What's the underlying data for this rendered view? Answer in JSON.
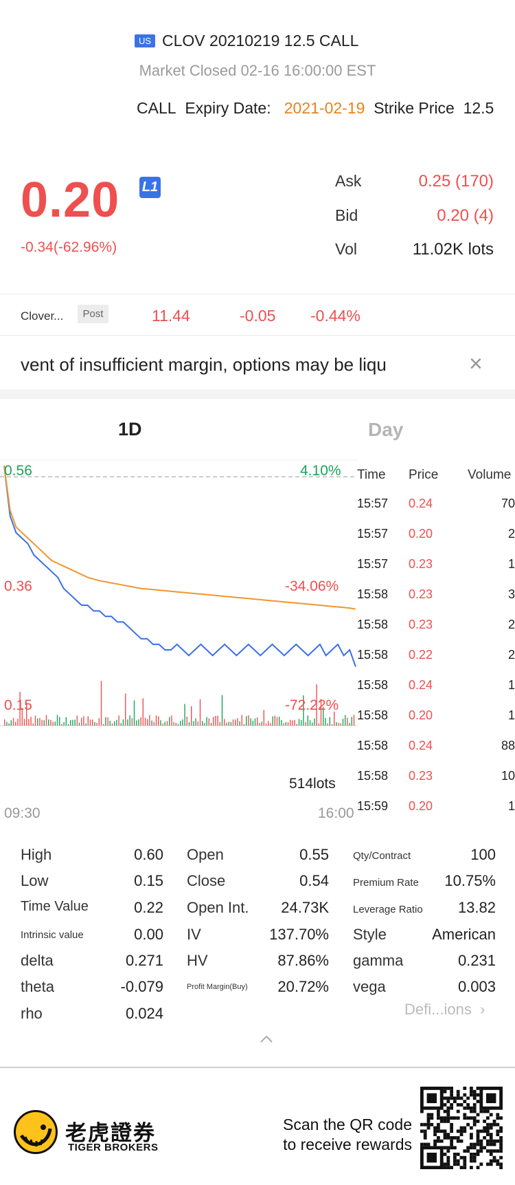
{
  "header": {
    "market_badge": "US",
    "title": "CLOV 20210219 12.5 CALL",
    "status": "Market Closed  02-16 16:00:00 EST",
    "call_label": "CALL",
    "expiry_label": "Expiry Date:",
    "expiry_date": "2021-02-19",
    "strike_label": "Strike Price",
    "strike_price": "12.5"
  },
  "quote": {
    "last_price": "0.20",
    "level_badge": "L1",
    "change": "-0.34(-62.96%)",
    "ask_label": "Ask",
    "ask_value": "0.25 (170)",
    "bid_label": "Bid",
    "bid_value": "0.20 (4)",
    "vol_label": "Vol",
    "vol_value": "11.02K lots"
  },
  "underlying": {
    "name": "Clover...",
    "session_badge": "Post",
    "price": "11.44",
    "change": "-0.05",
    "change_pct": "-0.44%"
  },
  "notice": {
    "text": "vent of insufficient margin, options may be liqu",
    "close_icon": "close-icon"
  },
  "tabs": {
    "active": "1D",
    "inactive": "Day"
  },
  "chart": {
    "y_top_label": "0.56",
    "y_top_pct": "4.10%",
    "y_mid_label": "0.36",
    "y_mid_pct": "-34.06%",
    "y_bot_label": "0.15",
    "y_bot_pct": "-72.22%",
    "volume_label": "514lots",
    "x_start": "09:30",
    "x_end": "16:00"
  },
  "chart_data": {
    "type": "line",
    "ylim": [
      0.15,
      0.56
    ],
    "reference_line": 0.54,
    "series": [
      {
        "color": "#3a6fe8",
        "values": [
          0.56,
          0.47,
          0.44,
          0.43,
          0.42,
          0.4,
          0.39,
          0.38,
          0.37,
          0.36,
          0.34,
          0.33,
          0.32,
          0.31,
          0.31,
          0.3,
          0.3,
          0.29,
          0.29,
          0.28,
          0.28,
          0.27,
          0.26,
          0.25,
          0.25,
          0.24,
          0.24,
          0.23,
          0.23,
          0.24,
          0.23,
          0.22,
          0.23,
          0.24,
          0.23,
          0.22,
          0.23,
          0.24,
          0.23,
          0.22,
          0.23,
          0.24,
          0.23,
          0.22,
          0.23,
          0.24,
          0.23,
          0.22,
          0.23,
          0.24,
          0.23,
          0.22,
          0.23,
          0.24,
          0.22,
          0.23,
          0.24,
          0.22,
          0.23,
          0.2
        ]
      },
      {
        "color": "#f0962c",
        "values": [
          0.56,
          0.48,
          0.45,
          0.44,
          0.43,
          0.42,
          0.41,
          0.4,
          0.39,
          0.385,
          0.38,
          0.375,
          0.37,
          0.365,
          0.36,
          0.357,
          0.354,
          0.352,
          0.35,
          0.348,
          0.346,
          0.344,
          0.342,
          0.34,
          0.339,
          0.338,
          0.337,
          0.336,
          0.335,
          0.334,
          0.333,
          0.332,
          0.331,
          0.33,
          0.329,
          0.328,
          0.327,
          0.326,
          0.325,
          0.324,
          0.323,
          0.322,
          0.321,
          0.32,
          0.319,
          0.318,
          0.317,
          0.316,
          0.315,
          0.314,
          0.313,
          0.312,
          0.311,
          0.31,
          0.309,
          0.308,
          0.307,
          0.306,
          0.305,
          0.303
        ]
      }
    ]
  },
  "trades": {
    "headers": [
      "Time",
      "Price",
      "Volume"
    ],
    "rows": [
      {
        "time": "15:57",
        "price": "0.24",
        "volume": "70"
      },
      {
        "time": "15:57",
        "price": "0.20",
        "volume": "2"
      },
      {
        "time": "15:57",
        "price": "0.23",
        "volume": "1"
      },
      {
        "time": "15:58",
        "price": "0.23",
        "volume": "3"
      },
      {
        "time": "15:58",
        "price": "0.23",
        "volume": "2"
      },
      {
        "time": "15:58",
        "price": "0.22",
        "volume": "2"
      },
      {
        "time": "15:58",
        "price": "0.24",
        "volume": "1"
      },
      {
        "time": "15:58",
        "price": "0.20",
        "volume": "1"
      },
      {
        "time": "15:58",
        "price": "0.24",
        "volume": "88"
      },
      {
        "time": "15:58",
        "price": "0.23",
        "volume": "10"
      },
      {
        "time": "15:59",
        "price": "0.20",
        "volume": "1"
      }
    ]
  },
  "stats": {
    "col1": [
      {
        "label": "High",
        "value": "0.60"
      },
      {
        "label": "Low",
        "value": "0.15"
      },
      {
        "label": "Time Value",
        "value": "0.22"
      },
      {
        "label": "Intrinsic value",
        "value": "0.00"
      },
      {
        "label": "delta",
        "value": "0.271"
      },
      {
        "label": "theta",
        "value": "-0.079"
      },
      {
        "label": "rho",
        "value": "0.024"
      }
    ],
    "col2": [
      {
        "label": "Open",
        "value": "0.55"
      },
      {
        "label": "Close",
        "value": "0.54"
      },
      {
        "label": "Open Int.",
        "value": "24.73K"
      },
      {
        "label": "IV",
        "value": "137.70%"
      },
      {
        "label": "HV",
        "value": "87.86%"
      },
      {
        "label": "Profit Margin(Buy)",
        "value": "20.72%"
      }
    ],
    "col3": [
      {
        "label": "Qty/Contract",
        "value": "100"
      },
      {
        "label": "Premium Rate",
        "value": "10.75%"
      },
      {
        "label": "Leverage Ratio",
        "value": "13.82"
      },
      {
        "label": "Style",
        "value": "American"
      },
      {
        "label": "gamma",
        "value": "0.231"
      },
      {
        "label": "vega",
        "value": "0.003"
      }
    ],
    "definitions_link": "Defi...ions"
  },
  "footer": {
    "brand_cn": "老虎證券",
    "brand_en": "TIGER BROKERS",
    "scan_line1": "Scan the QR code",
    "scan_line2": "to receive rewards"
  },
  "colors": {
    "red": "#ef4f4f",
    "green": "#1aa35a",
    "orange": "#e9811c",
    "blue": "#3a73e6"
  }
}
